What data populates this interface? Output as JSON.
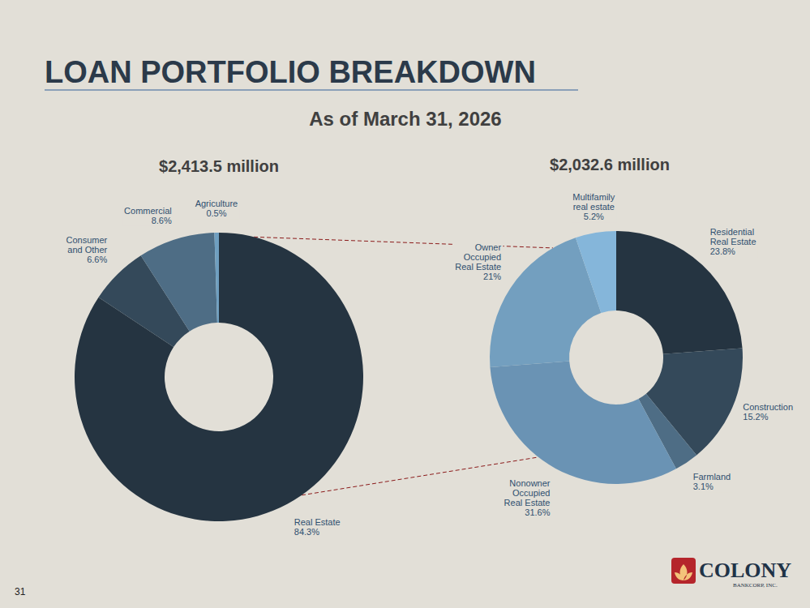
{
  "header": {
    "title": "LOAN PORTFOLIO BREAKDOWN",
    "subtitle": "As of March 31, 2026"
  },
  "footer": {
    "page_number": "31",
    "logo": "COLONY",
    "logo_tagline": "BANKCORP, INC."
  },
  "chart_data": [
    {
      "type": "pie",
      "title": "$2,413.5 million",
      "categories": [
        "Real Estate",
        "Consumer and Other",
        "Commercial",
        "Agriculture"
      ],
      "values": [
        84.3,
        6.6,
        8.6,
        0.5
      ],
      "value_labels": [
        "84.3%",
        "6.6%",
        "8.6%",
        "0.5%"
      ],
      "colors": [
        "#253441",
        "#34495a",
        "#4e6d85",
        "#6f9fc0"
      ],
      "data_labels": true
    },
    {
      "type": "pie",
      "title": "$2,032.6 million",
      "categories": [
        "Residential Real Estate",
        "Construction",
        "Farmland",
        "Nonowner Occupied Real Estate",
        "Owner Occupied Real Estate",
        "Multifamily real estate"
      ],
      "values": [
        23.8,
        15.2,
        3.1,
        31.6,
        21,
        5.2
      ],
      "value_labels": [
        "23.8%",
        "15.2%",
        "3.1%",
        "31.6%",
        "21%",
        "5.2%"
      ],
      "colors": [
        "#253441",
        "#34495a",
        "#4e6d85",
        "#6a93b4",
        "#739fbf",
        "#85b6da"
      ],
      "data_labels": true
    }
  ]
}
